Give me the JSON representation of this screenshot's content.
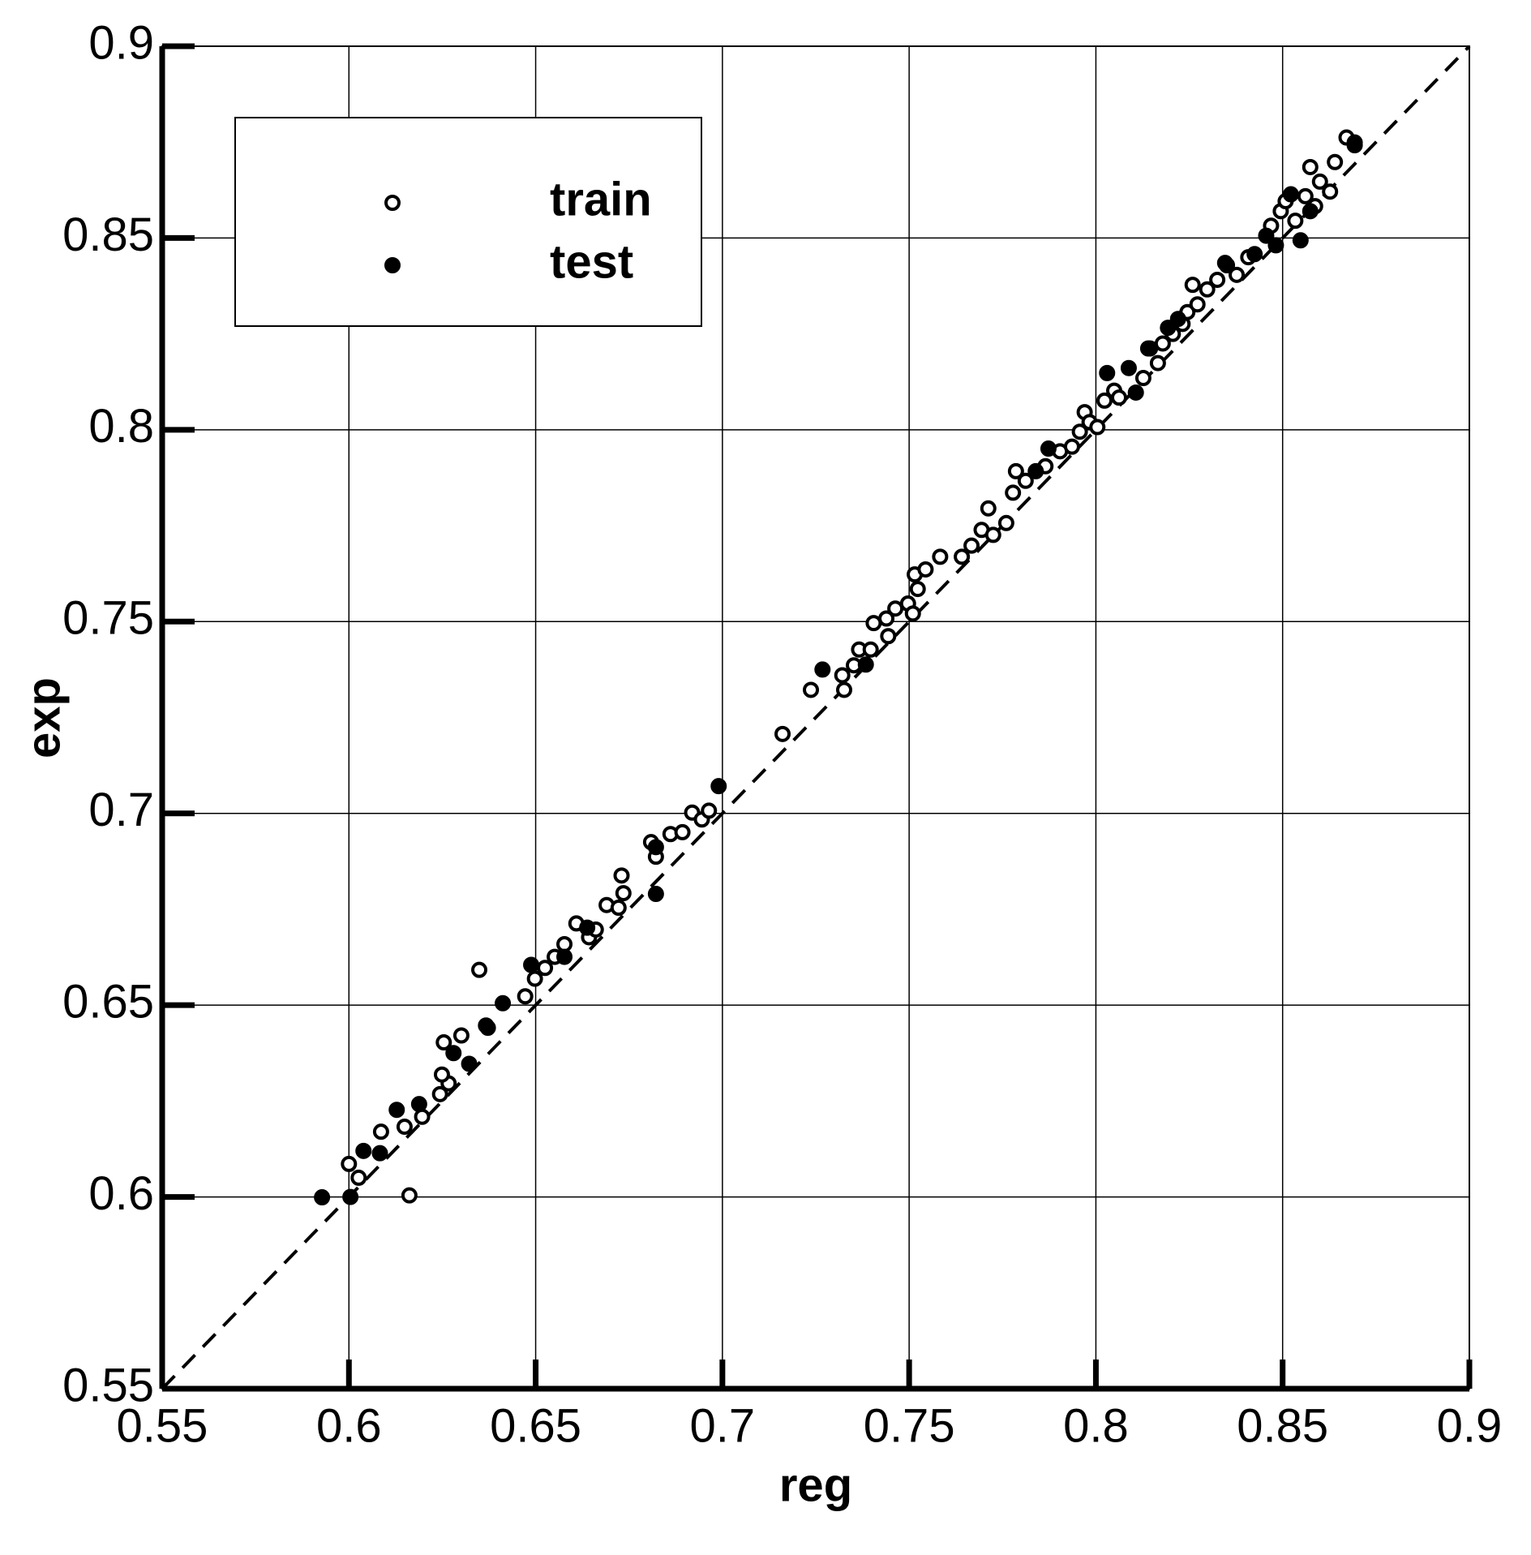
{
  "chart_data": {
    "type": "scatter",
    "xlabel": "reg",
    "ylabel": "exp",
    "xlim": [
      0.55,
      0.9
    ],
    "ylim": [
      0.55,
      0.9
    ],
    "xticks": [
      0.55,
      0.6,
      0.65,
      0.7,
      0.75,
      0.8,
      0.85,
      0.9
    ],
    "yticks": [
      0.55,
      0.6,
      0.65,
      0.7,
      0.75,
      0.8,
      0.85,
      0.9
    ],
    "grid": true,
    "legend": "upper left",
    "diagonal": true,
    "series": [
      {
        "name": "train",
        "color": "#000000",
        "marker": "open",
        "x": [
          0.6162,
          0.6,
          0.6026,
          0.6086,
          0.6149,
          0.6196,
          0.6244,
          0.6254,
          0.6267,
          0.6249,
          0.6301,
          0.6349,
          0.6367,
          0.6472,
          0.6498,
          0.6525,
          0.6551,
          0.6577,
          0.6609,
          0.6643,
          0.6661,
          0.669,
          0.6722,
          0.6735,
          0.673,
          0.6809,
          0.6822,
          0.6861,
          0.6893,
          0.6919,
          0.6945,
          0.6964,
          0.7161,
          0.7237,
          0.7326,
          0.7321,
          0.7352,
          0.7366,
          0.7397,
          0.7405,
          0.7439,
          0.7444,
          0.7463,
          0.7497,
          0.751,
          0.7523,
          0.7515,
          0.7544,
          0.7583,
          0.7641,
          0.7667,
          0.7694,
          0.7712,
          0.7725,
          0.776,
          0.7778,
          0.7786,
          0.7812,
          0.7865,
          0.7904,
          0.7936,
          0.7957,
          0.797,
          0.7983,
          0.8004,
          0.8049,
          0.8023,
          0.8062,
          0.8127,
          0.8145,
          0.8166,
          0.8179,
          0.8206,
          0.8232,
          0.8245,
          0.8259,
          0.8272,
          0.8298,
          0.8325,
          0.8351,
          0.8377,
          0.8408,
          0.8469,
          0.8495,
          0.8508,
          0.8534,
          0.8561,
          0.8574,
          0.8587,
          0.86,
          0.8627,
          0.864,
          0.8671,
          0.8693
        ],
        "values": [
          0.6004,
          0.6086,
          0.605,
          0.617,
          0.6183,
          0.6209,
          0.6268,
          0.6403,
          0.6296,
          0.6319,
          0.6421,
          0.6592,
          0.6447,
          0.6523,
          0.6569,
          0.6597,
          0.6626,
          0.6659,
          0.6713,
          0.6677,
          0.6697,
          0.6761,
          0.6754,
          0.6792,
          0.6838,
          0.6925,
          0.6887,
          0.6946,
          0.6951,
          0.7002,
          0.6984,
          0.7007,
          0.7207,
          0.7322,
          0.7322,
          0.736,
          0.7386,
          0.7427,
          0.7427,
          0.7496,
          0.7508,
          0.7462,
          0.7534,
          0.7547,
          0.7521,
          0.7585,
          0.7623,
          0.7636,
          0.7669,
          0.7669,
          0.7698,
          0.7739,
          0.7795,
          0.7726,
          0.7757,
          0.7836,
          0.7892,
          0.7867,
          0.7905,
          0.7944,
          0.7956,
          0.7995,
          0.8046,
          0.802,
          0.8007,
          0.8102,
          0.8076,
          0.8084,
          0.8135,
          0.8212,
          0.8174,
          0.8225,
          0.825,
          0.8276,
          0.8307,
          0.8378,
          0.8327,
          0.8366,
          0.8391,
          0.8429,
          0.8404,
          0.845,
          0.8532,
          0.857,
          0.8596,
          0.8545,
          0.8609,
          0.8685,
          0.8583,
          0.8647,
          0.8621,
          0.8698,
          0.8762,
          0.8742
        ]
      },
      {
        "name": "test",
        "color": "#000000",
        "marker": "filled",
        "x": [
          0.5928,
          0.6004,
          0.6039,
          0.6083,
          0.6128,
          0.6188,
          0.628,
          0.6322,
          0.6372,
          0.6412,
          0.6488,
          0.6577,
          0.6638,
          0.6822,
          0.6822,
          0.699,
          0.7268,
          0.7384,
          0.7873,
          0.7839,
          0.803,
          0.8088,
          0.8107,
          0.8193,
          0.822,
          0.8346,
          0.8425,
          0.8456,
          0.8482,
          0.8522,
          0.8548,
          0.8693,
          0.8574,
          0.814
        ],
        "values": [
          0.5999,
          0.6,
          0.612,
          0.6114,
          0.6227,
          0.6242,
          0.6375,
          0.6347,
          0.6441,
          0.6505,
          0.6605,
          0.6626,
          0.6702,
          0.679,
          0.6912,
          0.7071,
          0.7375,
          0.7388,
          0.7951,
          0.7892,
          0.8148,
          0.8161,
          0.8097,
          0.8266,
          0.8289,
          0.8435,
          0.8458,
          0.8506,
          0.8481,
          0.8614,
          0.8494,
          0.8749,
          0.857,
          0.8212
        ]
      }
    ]
  }
}
